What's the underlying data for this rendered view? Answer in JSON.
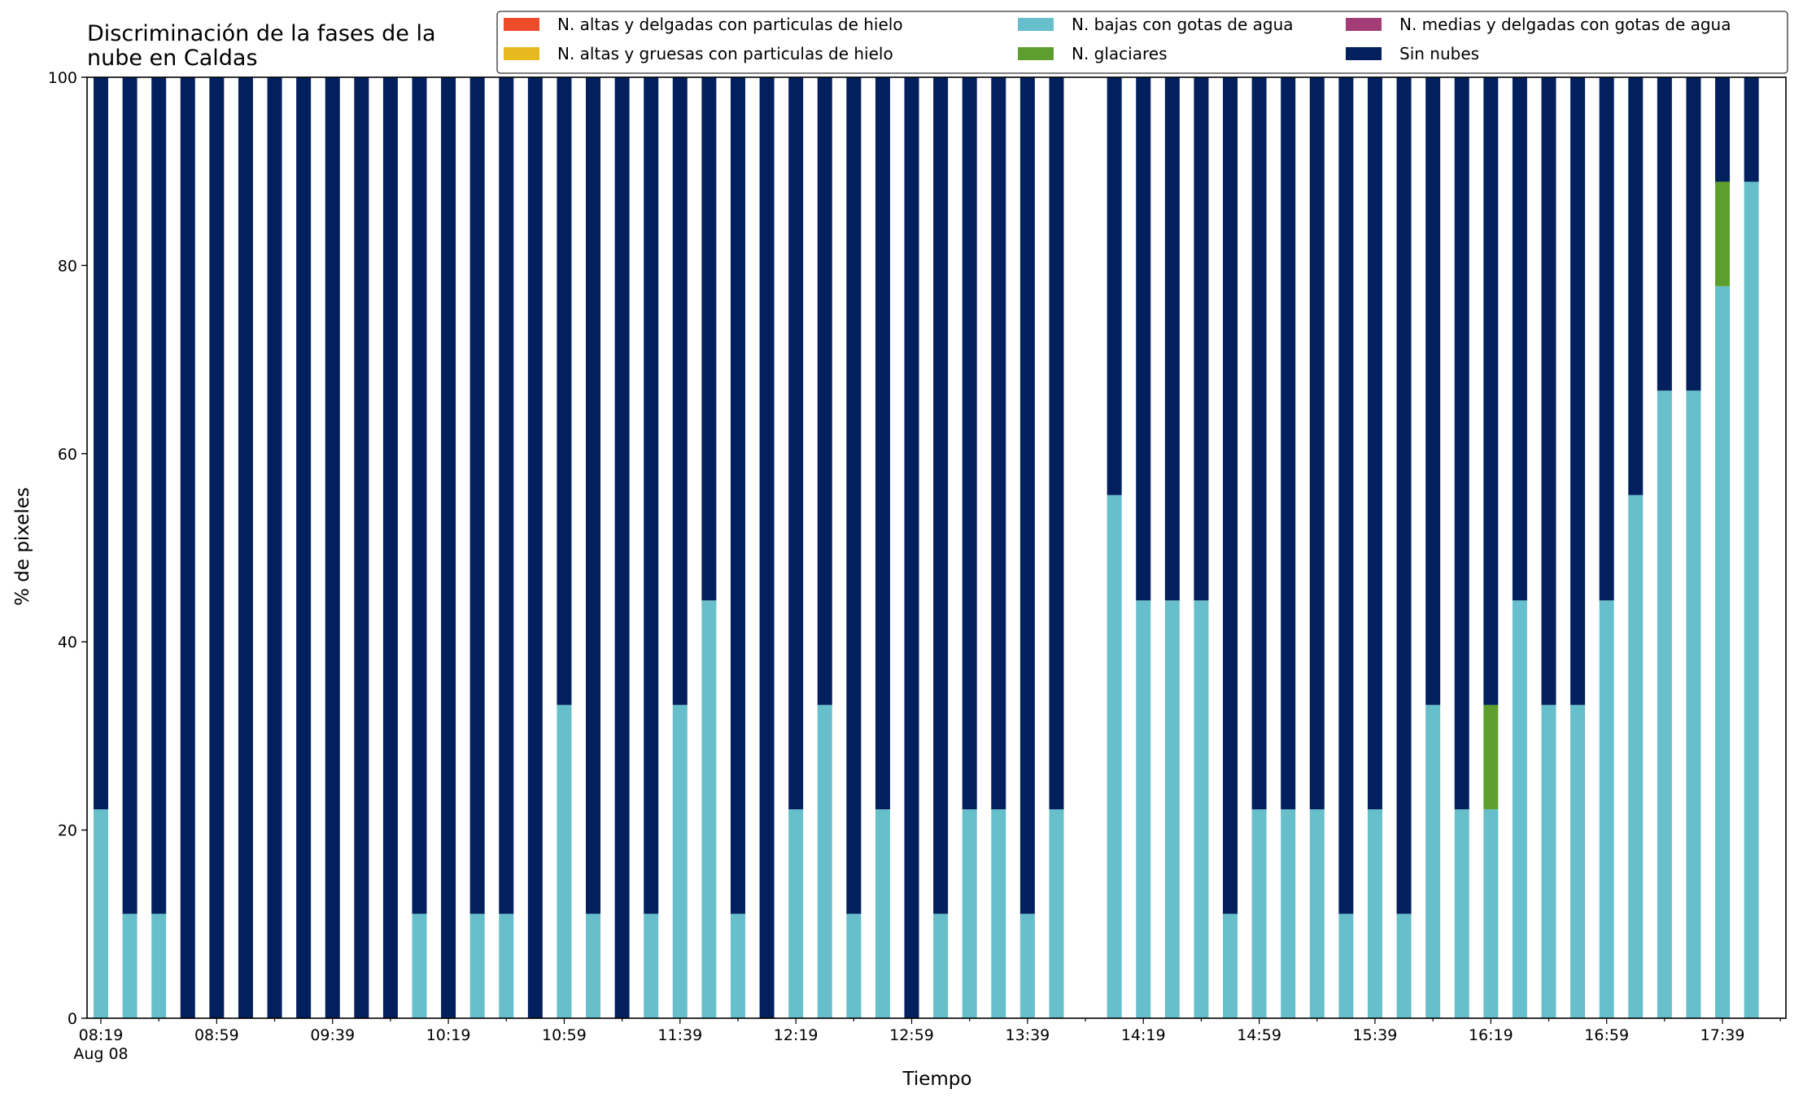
{
  "chart_data": {
    "type": "bar",
    "stacked": true,
    "title": "Discriminación de la fases de la\nnube en Caldas",
    "xlabel": "Tiempo",
    "ylabel": "% de pixeles",
    "ylim": [
      0,
      100
    ],
    "yticks": [
      "0",
      "20",
      "40",
      "60",
      "80",
      "100"
    ],
    "grid": false,
    "legend": {
      "placement": "top-right",
      "columns": 3,
      "entries": [
        {
          "name": "N. altas y delgadas con particulas de hielo",
          "color": "#EE4B2B"
        },
        {
          "name": "N. altas y gruesas con particulas de hielo",
          "color": "#E6B91E"
        },
        {
          "name": "N. bajas con gotas de agua",
          "color": "#67BFCB"
        },
        {
          "name": "N. glaciares",
          "color": "#5E9E2E"
        },
        {
          "name": "N. medias y delgadas con gotas de agua",
          "color": "#A43C78"
        },
        {
          "name": "Sin nubes",
          "color": "#021F5E"
        }
      ]
    },
    "x_tick_labels": [
      {
        "index": 0,
        "label": "08:19"
      },
      {
        "index": 4,
        "label": "08:59"
      },
      {
        "index": 8,
        "label": "09:39"
      },
      {
        "index": 12,
        "label": "10:19"
      },
      {
        "index": 16,
        "label": "10:59"
      },
      {
        "index": 20,
        "label": "11:39"
      },
      {
        "index": 24,
        "label": "12:19"
      },
      {
        "index": 28,
        "label": "12:59"
      },
      {
        "index": 32,
        "label": "13:39"
      },
      {
        "index": 36,
        "label": "14:19"
      },
      {
        "index": 40,
        "label": "14:59"
      },
      {
        "index": 44,
        "label": "15:39"
      },
      {
        "index": 48,
        "label": "16:19"
      },
      {
        "index": 52,
        "label": "16:59"
      },
      {
        "index": 56,
        "label": "17:39"
      }
    ],
    "date_label": "Aug 08",
    "categories": [
      "08:19",
      "08:29",
      "08:39",
      "08:49",
      "08:59",
      "09:09",
      "09:19",
      "09:29",
      "09:39",
      "09:49",
      "09:59",
      "10:09",
      "10:19",
      "10:29",
      "10:39",
      "10:49",
      "10:59",
      "11:09",
      "11:19",
      "11:29",
      "11:39",
      "11:49",
      "11:59",
      "12:09",
      "12:19",
      "12:29",
      "12:39",
      "12:49",
      "12:59",
      "13:09",
      "13:19",
      "13:29",
      "13:39",
      "13:49",
      "13:59",
      "14:09",
      "14:19",
      "14:29",
      "14:39",
      "14:49",
      "14:59",
      "15:09",
      "15:19",
      "15:29",
      "15:39",
      "15:49",
      "15:59",
      "16:09",
      "16:19",
      "16:29",
      "16:39",
      "16:49",
      "16:59",
      "17:09",
      "17:19",
      "17:29",
      "17:39",
      "17:49"
    ],
    "series": [
      {
        "name": "N. altas y delgadas con particulas de hielo",
        "color": "#EE4B2B",
        "values": [
          0,
          0,
          0,
          0,
          0,
          0,
          0,
          0,
          0,
          0,
          0,
          0,
          0,
          0,
          0,
          0,
          0,
          0,
          0,
          0,
          0,
          0,
          0,
          0,
          0,
          0,
          0,
          0,
          0,
          0,
          0,
          0,
          0,
          0,
          null,
          0,
          0,
          0,
          0,
          0,
          0,
          0,
          0,
          0,
          0,
          0,
          0,
          0,
          0,
          0,
          0,
          0,
          0,
          0,
          0,
          0,
          0,
          0
        ]
      },
      {
        "name": "N. altas y gruesas con particulas de hielo",
        "color": "#E6B91E",
        "values": [
          0,
          0,
          0,
          0,
          0,
          0,
          0,
          0,
          0,
          0,
          0,
          0,
          0,
          0,
          0,
          0,
          0,
          0,
          0,
          0,
          0,
          0,
          0,
          0,
          0,
          0,
          0,
          0,
          0,
          0,
          0,
          0,
          0,
          0,
          null,
          0,
          0,
          0,
          0,
          0,
          0,
          0,
          0,
          0,
          0,
          0,
          0,
          0,
          0,
          0,
          0,
          0,
          0,
          0,
          0,
          0,
          0,
          0
        ]
      },
      {
        "name": "N. bajas con gotas de agua",
        "color": "#67BFCB",
        "values": [
          22.2,
          11.1,
          11.1,
          0,
          0,
          0,
          0,
          0,
          0,
          0,
          0,
          11.1,
          0,
          11.1,
          11.1,
          0,
          33.3,
          11.1,
          0,
          11.1,
          33.3,
          44.4,
          11.1,
          0,
          22.2,
          33.3,
          11.1,
          22.2,
          0,
          11.1,
          22.2,
          22.2,
          11.1,
          22.2,
          null,
          55.6,
          44.4,
          44.4,
          44.4,
          11.1,
          22.2,
          22.2,
          22.2,
          11.1,
          22.2,
          11.1,
          33.3,
          22.2,
          22.2,
          44.4,
          33.3,
          33.3,
          44.4,
          55.6,
          66.7,
          66.7,
          77.8,
          88.9
        ]
      },
      {
        "name": "N. glaciares",
        "color": "#5E9E2E",
        "values": [
          0,
          0,
          0,
          0,
          0,
          0,
          0,
          0,
          0,
          0,
          0,
          0,
          0,
          0,
          0,
          0,
          0,
          0,
          0,
          0,
          0,
          0,
          0,
          0,
          0,
          0,
          0,
          0,
          0,
          0,
          0,
          0,
          0,
          0,
          null,
          0,
          0,
          0,
          0,
          0,
          0,
          0,
          0,
          0,
          0,
          0,
          0,
          0,
          11.1,
          0,
          0,
          0,
          0,
          0,
          0,
          0,
          11.1,
          0
        ]
      },
      {
        "name": "N. medias y delgadas con gotas de agua",
        "color": "#A43C78",
        "values": [
          0,
          0,
          0,
          0,
          0,
          0,
          0,
          0,
          0,
          0,
          0,
          0,
          0,
          0,
          0,
          0,
          0,
          0,
          0,
          0,
          0,
          0,
          0,
          0,
          0,
          0,
          0,
          0,
          0,
          0,
          0,
          0,
          0,
          0,
          null,
          0,
          0,
          0,
          0,
          0,
          0,
          0,
          0,
          0,
          0,
          0,
          0,
          0,
          0,
          0,
          0,
          0,
          0,
          0,
          0,
          0,
          0,
          0
        ]
      },
      {
        "name": "Sin nubes",
        "color": "#021F5E",
        "values": [
          77.8,
          88.9,
          88.9,
          100,
          100,
          100,
          100,
          100,
          100,
          100,
          100,
          88.9,
          100,
          88.9,
          88.9,
          100,
          66.7,
          88.9,
          100,
          88.9,
          66.7,
          55.6,
          88.9,
          100,
          77.8,
          66.7,
          88.9,
          77.8,
          100,
          88.9,
          77.8,
          77.8,
          88.9,
          77.8,
          null,
          44.4,
          55.6,
          55.6,
          55.6,
          88.9,
          77.8,
          77.8,
          77.8,
          88.9,
          77.8,
          88.9,
          66.7,
          77.8,
          66.7,
          55.6,
          66.7,
          66.7,
          55.6,
          44.4,
          33.3,
          33.3,
          11.1,
          11.1
        ]
      }
    ]
  }
}
